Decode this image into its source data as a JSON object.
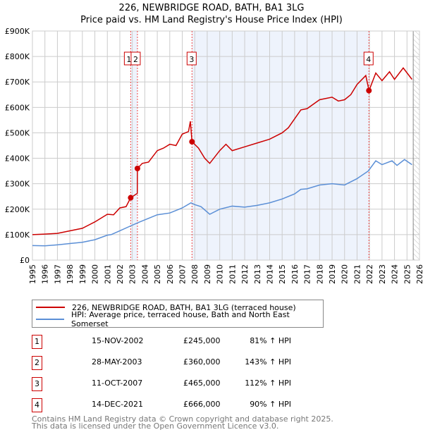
{
  "chart_data": {
    "type": "line",
    "title": "226, NEWBRIDGE ROAD, BATH, BA1 3LG",
    "subtitle": "Price paid vs. HM Land Registry's House Price Index (HPI)",
    "xlim": [
      1995,
      2026
    ],
    "ylim": [
      0,
      900000
    ],
    "y_ticks": [
      {
        "v": 0,
        "label": "£0"
      },
      {
        "v": 100000,
        "label": "£100K"
      },
      {
        "v": 200000,
        "label": "£200K"
      },
      {
        "v": 300000,
        "label": "£300K"
      },
      {
        "v": 400000,
        "label": "£400K"
      },
      {
        "v": 500000,
        "label": "£500K"
      },
      {
        "v": 600000,
        "label": "£600K"
      },
      {
        "v": 700000,
        "label": "£700K"
      },
      {
        "v": 800000,
        "label": "£800K"
      },
      {
        "v": 900000,
        "label": "£900K"
      }
    ],
    "x_ticks": [
      "1995",
      "1996",
      "1997",
      "1998",
      "1999",
      "2000",
      "2001",
      "2002",
      "2003",
      "2004",
      "2005",
      "2006",
      "2007",
      "2008",
      "2009",
      "2010",
      "2011",
      "2012",
      "2013",
      "2014",
      "2015",
      "2016",
      "2017",
      "2018",
      "2019",
      "2020",
      "2021",
      "2022",
      "2023",
      "2024",
      "2025",
      "2026"
    ],
    "grid": true,
    "data_end": 2025.5,
    "colors": {
      "property": "#cc0000",
      "hpi": "#5b8fd6",
      "shade": "#eef3fc",
      "vline": "#ee4444"
    },
    "series": [
      {
        "name": "226, NEWBRIDGE ROAD, BATH, BA1 3LG (terraced house)",
        "color": "#cc0000",
        "x": [
          1995,
          1996,
          1997,
          1998,
          1999,
          2000,
          2001,
          2001.5,
          2002,
          2002.5,
          2002.87,
          2003.4,
          2003.41,
          2003.8,
          2004.3,
          2005,
          2005.5,
          2006,
          2006.5,
          2007,
          2007.5,
          2007.65,
          2007.78,
          2008.3,
          2008.8,
          2009.2,
          2010,
          2010.5,
          2011,
          2012,
          2013,
          2014,
          2015,
          2015.5,
          2016,
          2016.5,
          2017,
          2018,
          2019,
          2019.5,
          2020,
          2020.5,
          2021,
          2021.7,
          2021.96,
          2022.5,
          2023,
          2023.6,
          2024,
          2024.7,
          2025.4
        ],
        "y": [
          100000,
          102000,
          105000,
          115000,
          125000,
          150000,
          180000,
          178000,
          205000,
          210000,
          245000,
          262000,
          360000,
          380000,
          385000,
          430000,
          440000,
          455000,
          450000,
          495000,
          505000,
          545000,
          465000,
          440000,
          400000,
          380000,
          430000,
          455000,
          430000,
          445000,
          460000,
          475000,
          500000,
          520000,
          555000,
          590000,
          595000,
          630000,
          640000,
          625000,
          630000,
          650000,
          690000,
          725000,
          666000,
          735000,
          705000,
          740000,
          710000,
          755000,
          710000
        ]
      },
      {
        "name": "HPI: Average price, terraced house, Bath and North East Somerset",
        "color": "#5b8fd6",
        "x": [
          1995,
          1996,
          1997,
          1998,
          1999,
          2000,
          2001,
          2001.3,
          2002,
          2002.9,
          2003.5,
          2004,
          2005,
          2006,
          2007,
          2007.7,
          2008,
          2008.5,
          2009.2,
          2010,
          2011,
          2012,
          2013,
          2014,
          2015,
          2016,
          2016.5,
          2017,
          2018,
          2019,
          2020,
          2021,
          2021.9,
          2022.5,
          2023,
          2023.8,
          2024.2,
          2024.8,
          2025.4
        ],
        "y": [
          57000,
          56000,
          60000,
          65000,
          70000,
          80000,
          98000,
          100000,
          115000,
          135000,
          148000,
          158000,
          178000,
          185000,
          205000,
          225000,
          218000,
          210000,
          180000,
          200000,
          212000,
          208000,
          215000,
          225000,
          240000,
          260000,
          278000,
          280000,
          295000,
          300000,
          295000,
          320000,
          350000,
          390000,
          375000,
          390000,
          372000,
          395000,
          375000
        ]
      }
    ],
    "sales": [
      {
        "id": "1",
        "x": 2002.87,
        "date": "15-NOV-2002",
        "price": 245000,
        "price_label": "£245,000",
        "hpi": "81% ↑ HPI"
      },
      {
        "id": "2",
        "x": 2003.41,
        "date": "28-MAY-2003",
        "price": 360000,
        "price_label": "£360,000",
        "hpi": "143% ↑ HPI"
      },
      {
        "id": "3",
        "x": 2007.78,
        "date": "11-OCT-2007",
        "price": 465000,
        "price_label": "£465,000",
        "hpi": "112% ↑ HPI"
      },
      {
        "id": "4",
        "x": 2021.95,
        "date": "14-DEC-2021",
        "price": 666000,
        "price_label": "£666,000",
        "hpi": "90% ↑ HPI"
      }
    ],
    "legend_placement": "below"
  },
  "footer": {
    "line1": "Contains HM Land Registry data © Crown copyright and database right 2025.",
    "line2": "This data is licensed under the Open Government Licence v3.0."
  }
}
